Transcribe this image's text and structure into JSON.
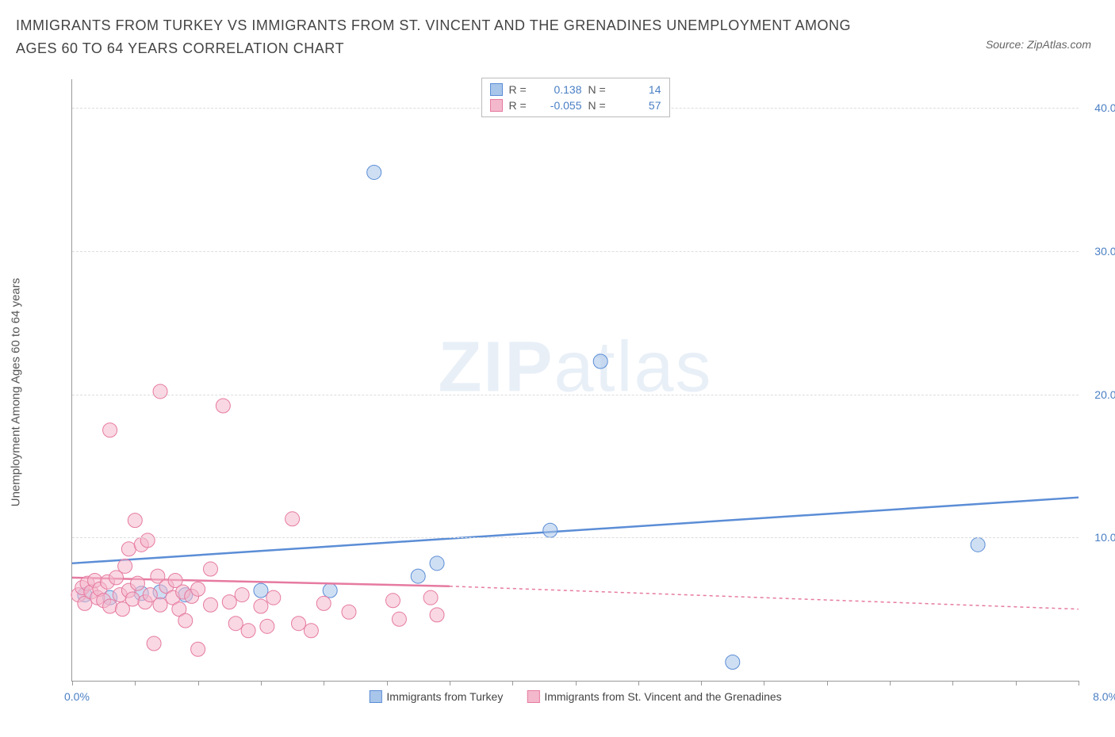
{
  "title": "IMMIGRANTS FROM TURKEY VS IMMIGRANTS FROM ST. VINCENT AND THE GRENADINES UNEMPLOYMENT AMONG AGES 60 TO 64 YEARS CORRELATION CHART",
  "source": "Source: ZipAtlas.com",
  "watermark": {
    "pre": "ZIP",
    "post": "atlas"
  },
  "yAxisLabel": "Unemployment Among Ages 60 to 64 years",
  "chart": {
    "type": "scatter",
    "xlim": [
      0,
      8
    ],
    "ylim": [
      0,
      42
    ],
    "xTickPositions": [
      0,
      0.5,
      1.0,
      1.5,
      2.0,
      2.5,
      3.0,
      3.5,
      4.0,
      4.5,
      5.0,
      5.5,
      6.0,
      6.5,
      7.0,
      7.5,
      8.0
    ],
    "yTicks": [
      {
        "v": 10,
        "label": "10.0%"
      },
      {
        "v": 20,
        "label": "20.0%"
      },
      {
        "v": 30,
        "label": "30.0%"
      },
      {
        "v": 40,
        "label": "40.0%"
      }
    ],
    "xOriginLabel": "0.0%",
    "xEndLabel": "8.0%",
    "background_color": "#ffffff",
    "grid_color": "#dddddd",
    "axis_color": "#999999",
    "tick_label_color": "#4a7fc4",
    "marker_radius": 9,
    "marker_opacity": 0.55,
    "line_width": 2.5,
    "series": [
      {
        "name": "Immigrants from Turkey",
        "color_stroke": "#5b8dd6",
        "color_fill": "#a8c5ea",
        "R": "0.138",
        "N": "14",
        "regression": {
          "x1": 0,
          "y1": 8.2,
          "x2": 8,
          "y2": 12.8,
          "dashed": false
        },
        "points": [
          {
            "x": 0.1,
            "y": 6.0
          },
          {
            "x": 0.55,
            "y": 6.1
          },
          {
            "x": 0.7,
            "y": 6.2
          },
          {
            "x": 1.5,
            "y": 6.3
          },
          {
            "x": 2.05,
            "y": 6.3
          },
          {
            "x": 2.9,
            "y": 8.2
          },
          {
            "x": 2.75,
            "y": 7.3
          },
          {
            "x": 2.4,
            "y": 35.5
          },
          {
            "x": 3.8,
            "y": 10.5
          },
          {
            "x": 4.2,
            "y": 22.3
          },
          {
            "x": 5.25,
            "y": 1.3
          },
          {
            "x": 7.2,
            "y": 9.5
          },
          {
            "x": 0.3,
            "y": 5.8
          },
          {
            "x": 0.9,
            "y": 6.0
          }
        ]
      },
      {
        "name": "Immigrants from St. Vincent and the Grenadines",
        "color_stroke": "#e67aa0",
        "color_fill": "#f4b8cc",
        "R": "-0.055",
        "N": "57",
        "regression": {
          "x1": 0,
          "y1": 7.2,
          "x2": 3.0,
          "y2": 6.6,
          "dashedFrom": 3.0,
          "dashedTo": 8.0,
          "dashedY1": 6.6,
          "dashedY2": 5.0,
          "dashed": true
        },
        "points": [
          {
            "x": 0.05,
            "y": 6.0
          },
          {
            "x": 0.08,
            "y": 6.5
          },
          {
            "x": 0.1,
            "y": 5.4
          },
          {
            "x": 0.12,
            "y": 6.8
          },
          {
            "x": 0.15,
            "y": 6.2
          },
          {
            "x": 0.18,
            "y": 7.0
          },
          {
            "x": 0.2,
            "y": 5.8
          },
          {
            "x": 0.22,
            "y": 6.4
          },
          {
            "x": 0.25,
            "y": 5.6
          },
          {
            "x": 0.28,
            "y": 6.9
          },
          {
            "x": 0.3,
            "y": 5.2
          },
          {
            "x": 0.3,
            "y": 17.5
          },
          {
            "x": 0.35,
            "y": 7.2
          },
          {
            "x": 0.38,
            "y": 6.0
          },
          {
            "x": 0.4,
            "y": 5.0
          },
          {
            "x": 0.42,
            "y": 8.0
          },
          {
            "x": 0.45,
            "y": 6.3
          },
          {
            "x": 0.45,
            "y": 9.2
          },
          {
            "x": 0.48,
            "y": 5.7
          },
          {
            "x": 0.5,
            "y": 11.2
          },
          {
            "x": 0.52,
            "y": 6.8
          },
          {
            "x": 0.55,
            "y": 9.5
          },
          {
            "x": 0.58,
            "y": 5.5
          },
          {
            "x": 0.6,
            "y": 9.8
          },
          {
            "x": 0.62,
            "y": 6.0
          },
          {
            "x": 0.65,
            "y": 2.6
          },
          {
            "x": 0.68,
            "y": 7.3
          },
          {
            "x": 0.7,
            "y": 5.3
          },
          {
            "x": 0.7,
            "y": 20.2
          },
          {
            "x": 0.75,
            "y": 6.6
          },
          {
            "x": 0.8,
            "y": 5.8
          },
          {
            "x": 0.82,
            "y": 7.0
          },
          {
            "x": 0.85,
            "y": 5.0
          },
          {
            "x": 0.88,
            "y": 6.2
          },
          {
            "x": 0.9,
            "y": 4.2
          },
          {
            "x": 0.95,
            "y": 5.9
          },
          {
            "x": 1.0,
            "y": 6.4
          },
          {
            "x": 1.0,
            "y": 2.2
          },
          {
            "x": 1.1,
            "y": 7.8
          },
          {
            "x": 1.1,
            "y": 5.3
          },
          {
            "x": 1.2,
            "y": 19.2
          },
          {
            "x": 1.25,
            "y": 5.5
          },
          {
            "x": 1.3,
            "y": 4.0
          },
          {
            "x": 1.35,
            "y": 6.0
          },
          {
            "x": 1.4,
            "y": 3.5
          },
          {
            "x": 1.5,
            "y": 5.2
          },
          {
            "x": 1.55,
            "y": 3.8
          },
          {
            "x": 1.6,
            "y": 5.8
          },
          {
            "x": 1.75,
            "y": 11.3
          },
          {
            "x": 1.8,
            "y": 4.0
          },
          {
            "x": 1.9,
            "y": 3.5
          },
          {
            "x": 2.0,
            "y": 5.4
          },
          {
            "x": 2.2,
            "y": 4.8
          },
          {
            "x": 2.55,
            "y": 5.6
          },
          {
            "x": 2.6,
            "y": 4.3
          },
          {
            "x": 2.85,
            "y": 5.8
          },
          {
            "x": 2.9,
            "y": 4.6
          }
        ]
      }
    ]
  }
}
